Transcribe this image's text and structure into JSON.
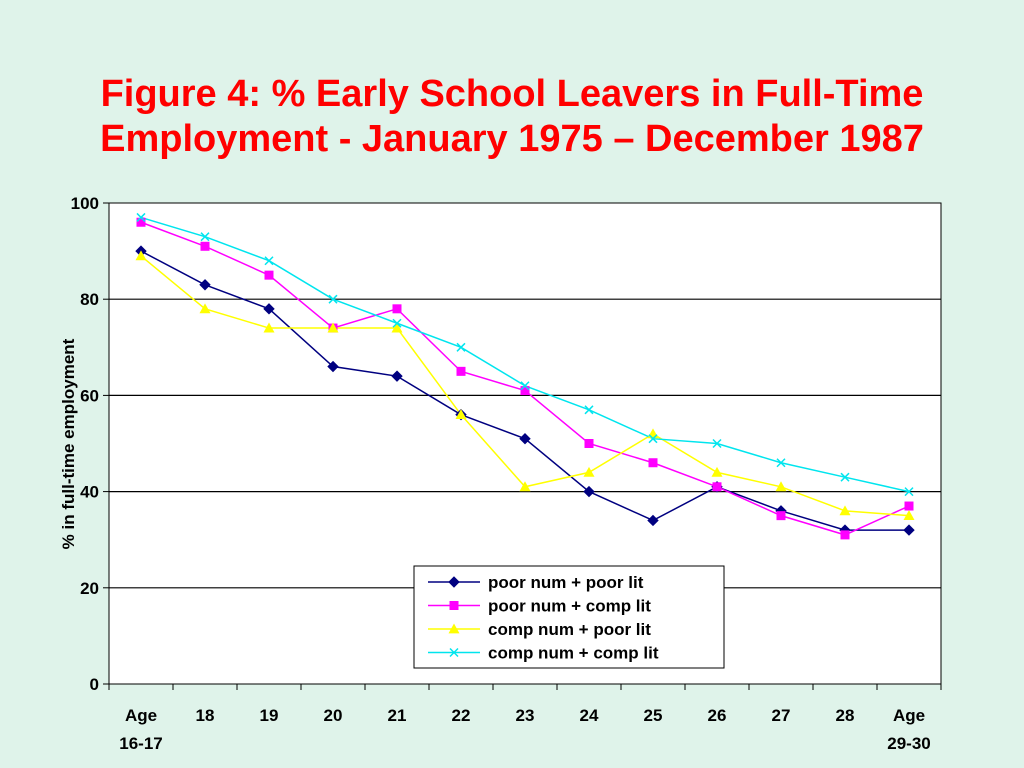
{
  "title": {
    "line1": "Figure 4: % Early School Leavers in Full-Time",
    "line2": "Employment - January 1975 – December 1987"
  },
  "chart_data": {
    "type": "line",
    "title": "Figure 4: % Early School Leavers in Full-Time Employment - January 1975 – December 1987",
    "xlabel": "",
    "ylabel": "% in full-time employment",
    "ylim": [
      0,
      100
    ],
    "yticks": [
      0,
      20,
      40,
      60,
      80,
      100
    ],
    "grid": "horizontal major gridlines",
    "legend_position": "bottom-center inside plot",
    "categories": [
      [
        "Age",
        "16-17"
      ],
      [
        "18"
      ],
      [
        "19"
      ],
      [
        "20"
      ],
      [
        "21"
      ],
      [
        "22"
      ],
      [
        "23"
      ],
      [
        "24"
      ],
      [
        "25"
      ],
      [
        "26"
      ],
      [
        "27"
      ],
      [
        "28"
      ],
      [
        "Age",
        "29-30"
      ]
    ],
    "series": [
      {
        "name": "poor num + poor lit",
        "color": "#000080",
        "marker": "diamond",
        "values": [
          90,
          83,
          78,
          66,
          64,
          56,
          51,
          40,
          34,
          41,
          36,
          32,
          32
        ]
      },
      {
        "name": "poor num + comp lit",
        "color": "#ff00ff",
        "marker": "square",
        "values": [
          96,
          91,
          85,
          74,
          78,
          65,
          61,
          50,
          46,
          41,
          35,
          31,
          37
        ]
      },
      {
        "name": "comp num + poor lit",
        "color": "#ffff00",
        "marker": "triangle",
        "values": [
          89,
          78,
          74,
          74,
          74,
          56,
          41,
          44,
          52,
          44,
          41,
          36,
          35
        ]
      },
      {
        "name": "comp num + comp lit",
        "color": "#00e5ee",
        "marker": "cross",
        "values": [
          97,
          93,
          88,
          80,
          75,
          70,
          62,
          57,
          51,
          50,
          46,
          43,
          40
        ]
      }
    ]
  }
}
